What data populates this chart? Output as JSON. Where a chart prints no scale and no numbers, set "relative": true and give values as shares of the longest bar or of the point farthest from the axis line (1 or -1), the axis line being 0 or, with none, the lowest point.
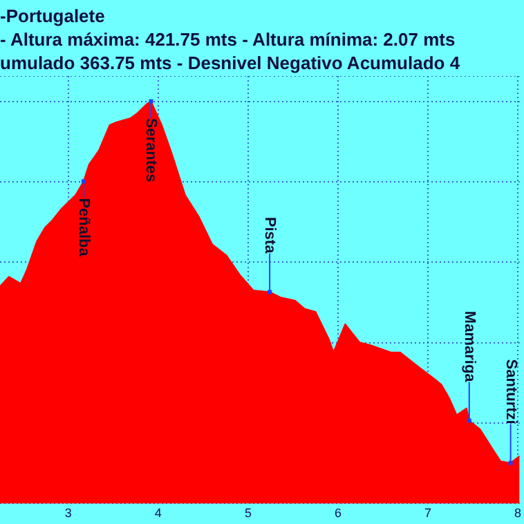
{
  "chart_data": {
    "type": "area",
    "title": "-Portugalete",
    "subtitle": "- Altura máxima: 421.75 mts - Altura mínima: 2.07 mts\numulado 363.75 mts - Desnivel Negativo Acumulado 4",
    "relative": true,
    "marker": "none",
    "grid": true,
    "legend": false,
    "xlim": [
      2.24,
      8.02
    ],
    "xticks": [
      3,
      4,
      5,
      6,
      7,
      8
    ],
    "series": [
      {
        "color": "#ff0000",
        "x": [
          2.24,
          2.34,
          2.47,
          2.54,
          2.65,
          2.74,
          2.82,
          2.92,
          3.08,
          3.17,
          3.23,
          3.34,
          3.46,
          3.53,
          3.69,
          3.76,
          3.87,
          3.92,
          4.04,
          4.15,
          4.3,
          4.45,
          4.6,
          4.76,
          4.91,
          5.06,
          5.24,
          5.37,
          5.52,
          5.63,
          5.75,
          5.9,
          5.95,
          6.08,
          6.24,
          6.36,
          6.59,
          6.69,
          6.89,
          7.05,
          7.15,
          7.24,
          7.32,
          7.43,
          7.46,
          7.58,
          7.73,
          7.81,
          7.92,
          8.02
        ],
        "values": [
          0.54,
          0.564,
          0.547,
          0.582,
          0.652,
          0.686,
          0.704,
          0.732,
          0.767,
          0.801,
          0.843,
          0.878,
          0.941,
          0.948,
          0.958,
          0.969,
          0.993,
          1,
          0.941,
          0.871,
          0.767,
          0.714,
          0.645,
          0.617,
          0.568,
          0.53,
          0.526,
          0.512,
          0.505,
          0.484,
          0.477,
          0.408,
          0.376,
          0.446,
          0.401,
          0.394,
          0.376,
          0.376,
          0.341,
          0.314,
          0.296,
          0.261,
          0.22,
          0.237,
          0.206,
          0.185,
          0.132,
          0.105,
          0.101,
          0.118
        ]
      }
    ],
    "annotations": [
      {
        "text": "Peñalba",
        "x": 3.17,
        "y": 0.801
      },
      {
        "text": "Serantes",
        "x": 3.92,
        "y": 1
      },
      {
        "text": "Pista",
        "x": 5.24,
        "y": 0.526
      },
      {
        "text": "Mamariga",
        "x": 7.46,
        "y": 0.206
      },
      {
        "text": "Santurtzi",
        "x": 7.92,
        "y": 0.101
      }
    ]
  }
}
